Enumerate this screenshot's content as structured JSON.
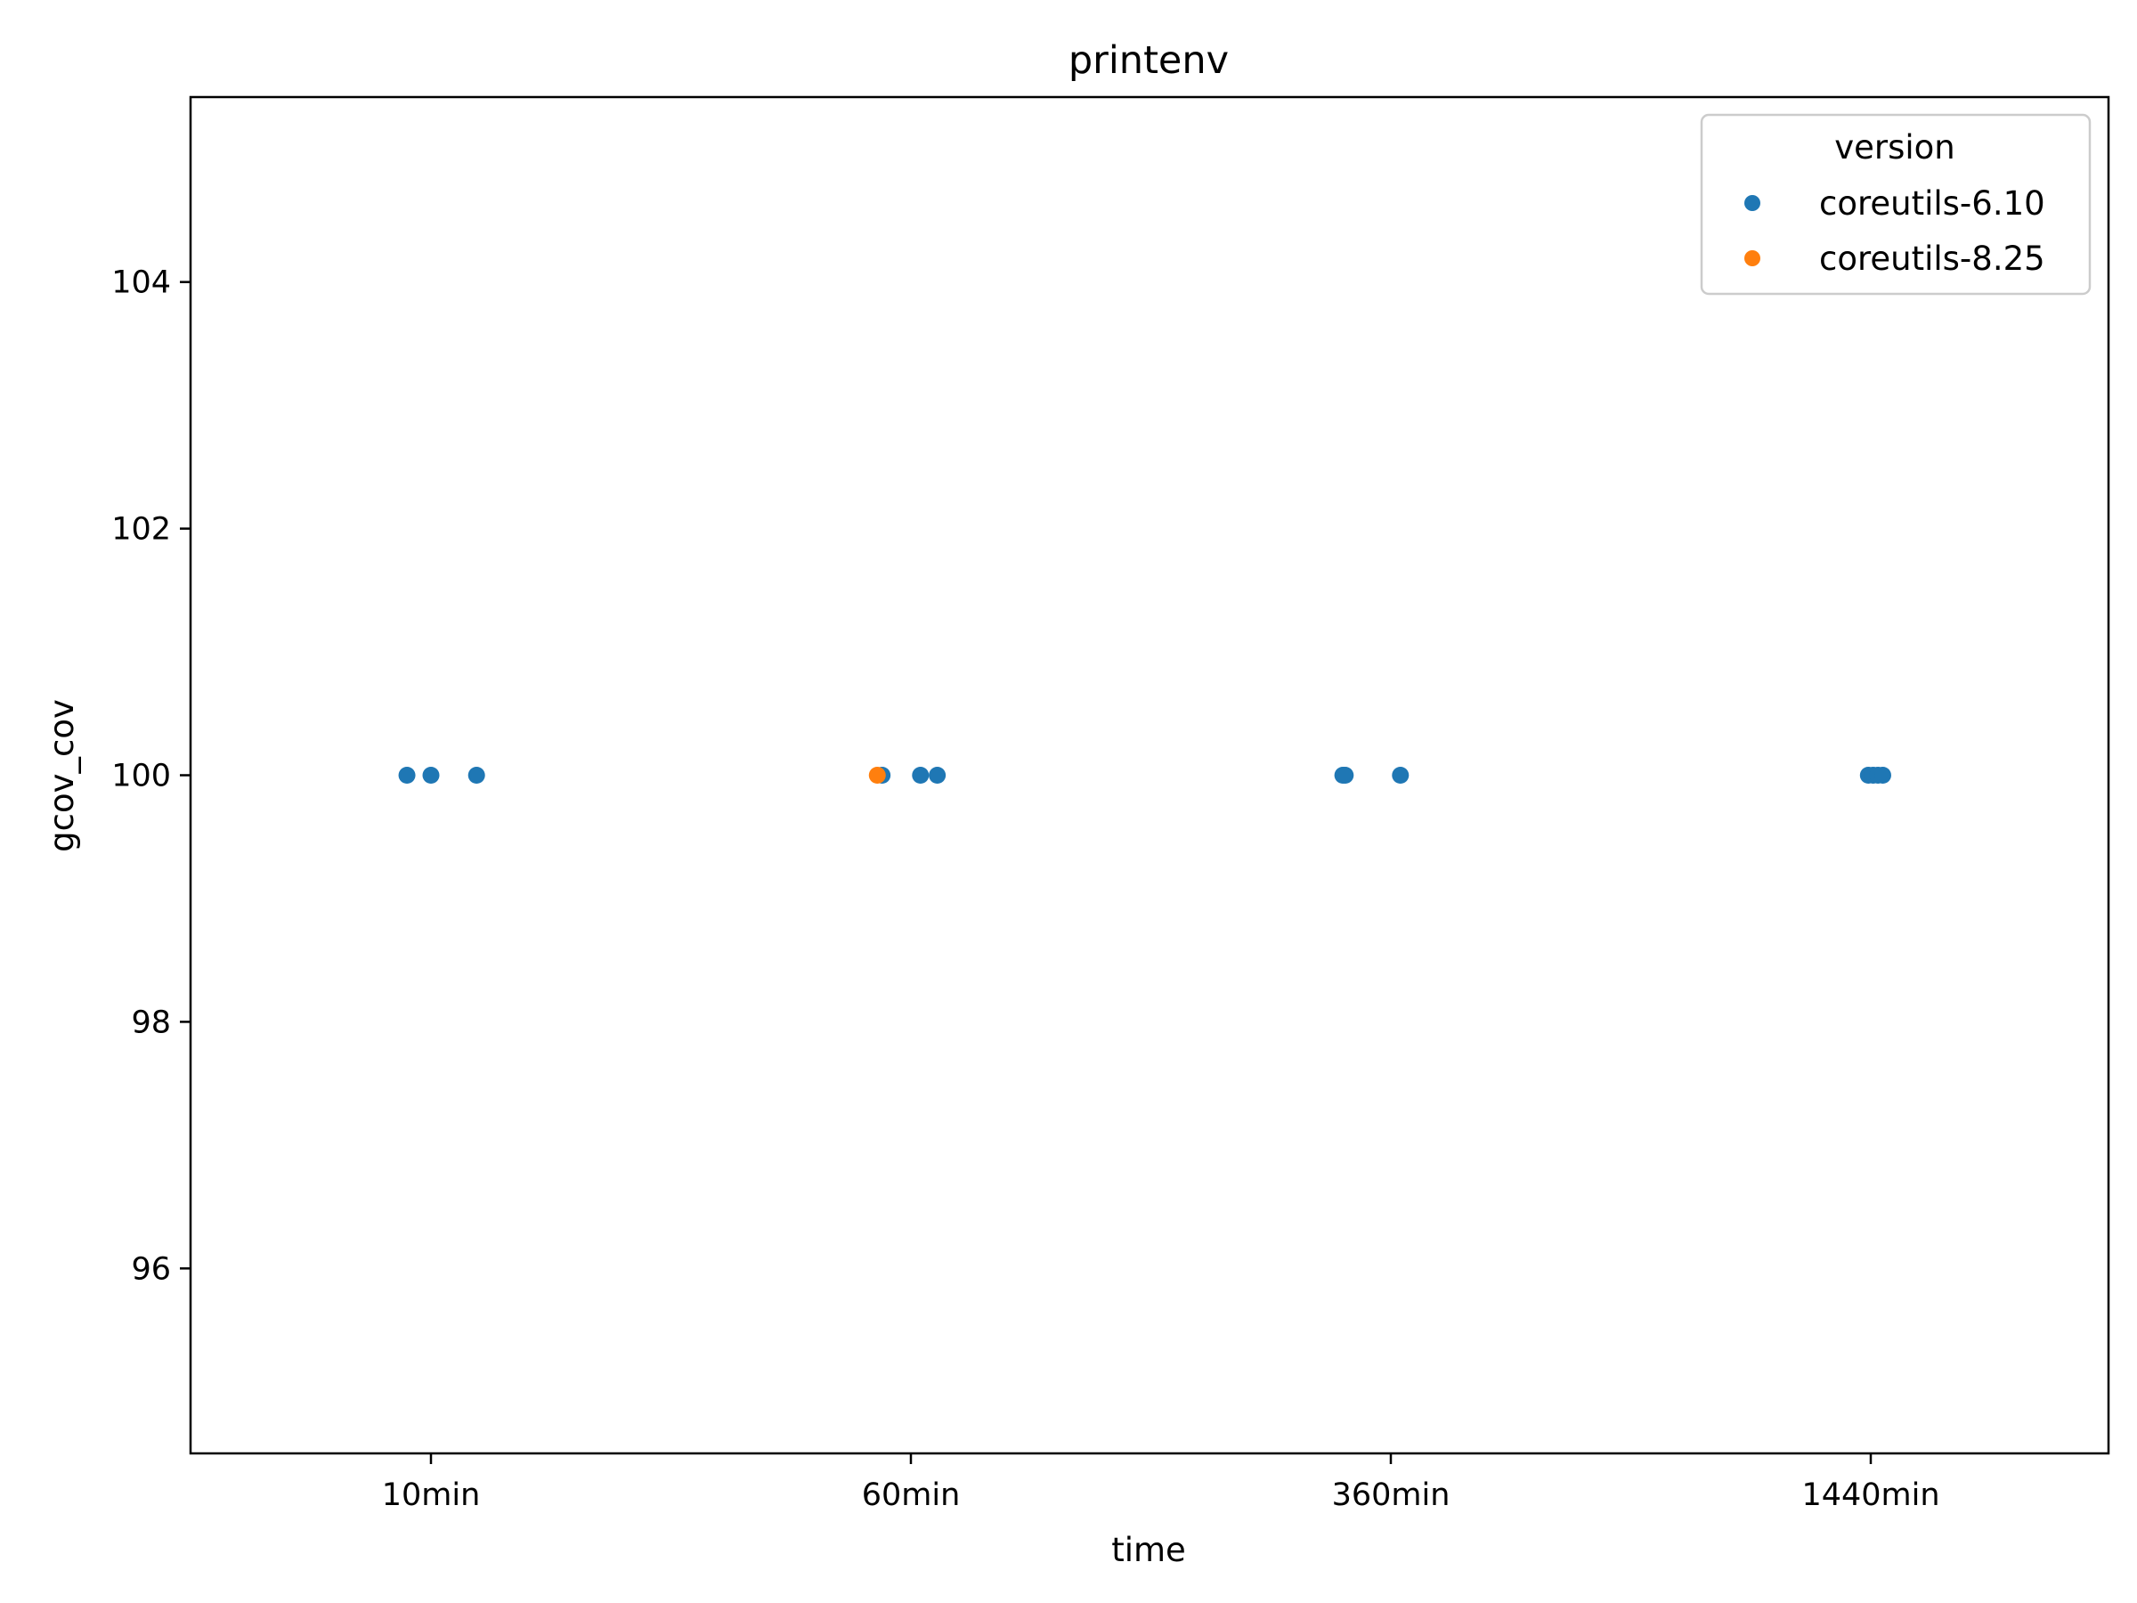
{
  "chart_data": {
    "type": "scatter",
    "title": "printenv",
    "xlabel": "time",
    "ylabel": "gcov_cov",
    "categories": [
      "10min",
      "60min",
      "360min",
      "1440min"
    ],
    "ylim": [
      94.5,
      105.5
    ],
    "yticks": [
      96,
      98,
      100,
      102,
      104
    ],
    "grid": false,
    "legend": {
      "title": "version",
      "placement": "top-right",
      "entries": [
        "coreutils-6.10",
        "coreutils-8.25"
      ]
    },
    "series": [
      {
        "name": "coreutils-6.10",
        "color": "#1f77b4",
        "points": [
          {
            "x": "10min",
            "jitter": -0.05,
            "y": 100
          },
          {
            "x": "10min",
            "jitter": 0.0,
            "y": 100
          },
          {
            "x": "10min",
            "jitter": 0.095,
            "y": 100
          },
          {
            "x": "60min",
            "jitter": -0.06,
            "y": 100
          },
          {
            "x": "60min",
            "jitter": 0.02,
            "y": 100
          },
          {
            "x": "60min",
            "jitter": 0.055,
            "y": 100
          },
          {
            "x": "360min",
            "jitter": -0.1,
            "y": 100
          },
          {
            "x": "360min",
            "jitter": -0.095,
            "y": 100
          },
          {
            "x": "360min",
            "jitter": 0.02,
            "y": 100
          },
          {
            "x": "1440min",
            "jitter": -0.005,
            "y": 100
          },
          {
            "x": "1440min",
            "jitter": 0.005,
            "y": 100
          },
          {
            "x": "1440min",
            "jitter": 0.015,
            "y": 100
          },
          {
            "x": "1440min",
            "jitter": 0.025,
            "y": 100
          }
        ]
      },
      {
        "name": "coreutils-8.25",
        "color": "#ff7f0e",
        "points": [
          {
            "x": "60min",
            "jitter": -0.07,
            "y": 100
          }
        ]
      }
    ]
  }
}
